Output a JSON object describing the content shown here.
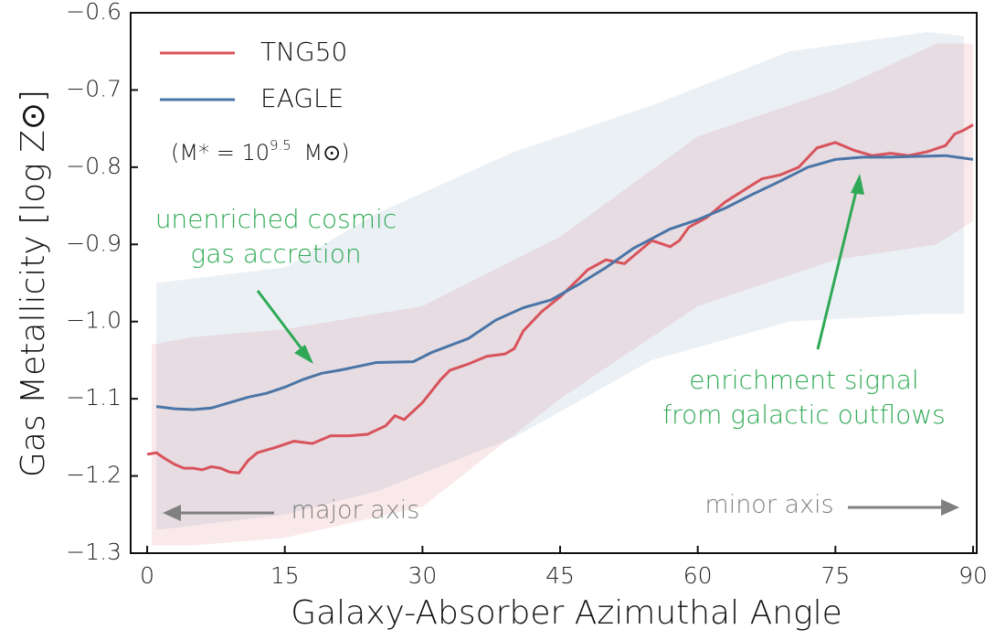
{
  "chart_data": {
    "type": "line",
    "xlabel": "Galaxy-Absorber Azimuthal Angle",
    "ylabel": "Gas Metallicity [log Z⊙]",
    "xlim": [
      -1.8,
      90.4
    ],
    "ylim": [
      -1.3,
      -0.6
    ],
    "xticks": [
      0,
      15,
      30,
      45,
      60,
      75,
      90
    ],
    "yticks": [
      {
        "value": -1.3,
        "label": "−1.3"
      },
      {
        "value": -1.2,
        "label": "−1.2"
      },
      {
        "value": -1.1,
        "label": "−1.1"
      },
      {
        "value": -1.0,
        "label": "−1.0"
      },
      {
        "value": -0.9,
        "label": "−0.9"
      },
      {
        "value": -0.8,
        "label": "−0.8"
      },
      {
        "value": -0.7,
        "label": "−0.7"
      },
      {
        "value": -0.6,
        "label": "−0.6"
      }
    ],
    "legend": "upper left",
    "legend_note": [
      "(M* = 10",
      "9.5",
      " M⊙)"
    ],
    "series": [
      {
        "name": "TNG50",
        "color": "#d9535b",
        "x": [
          0,
          1,
          2,
          3,
          4,
          5,
          6,
          7,
          8,
          9,
          10,
          11,
          12,
          14,
          16,
          18,
          20,
          22,
          24,
          26,
          27,
          28,
          30,
          32,
          33,
          35,
          37,
          39,
          40,
          41,
          43,
          45,
          47,
          48,
          50,
          52,
          54,
          55,
          57,
          58,
          59,
          61,
          63,
          65,
          67,
          69,
          71,
          73,
          75,
          77,
          79,
          81,
          83,
          85,
          87,
          88,
          89,
          90
        ],
        "values": [
          -1.172,
          -1.17,
          -1.178,
          -1.185,
          -1.19,
          -1.19,
          -1.192,
          -1.188,
          -1.19,
          -1.195,
          -1.196,
          -1.18,
          -1.17,
          -1.163,
          -1.155,
          -1.158,
          -1.148,
          -1.148,
          -1.146,
          -1.135,
          -1.122,
          -1.127,
          -1.105,
          -1.075,
          -1.063,
          -1.055,
          -1.045,
          -1.042,
          -1.035,
          -1.012,
          -0.987,
          -0.968,
          -0.945,
          -0.933,
          -0.92,
          -0.925,
          -0.905,
          -0.895,
          -0.903,
          -0.895,
          -0.878,
          -0.865,
          -0.845,
          -0.83,
          -0.815,
          -0.81,
          -0.8,
          -0.775,
          -0.768,
          -0.778,
          -0.785,
          -0.782,
          -0.785,
          -0.78,
          -0.772,
          -0.757,
          -0.752,
          -0.745
        ],
        "band": {
          "x": [
            0.5,
            5,
            15,
            30,
            45,
            60,
            75,
            86,
            90
          ],
          "high": [
            -1.03,
            -1.02,
            -1.01,
            -0.98,
            -0.89,
            -0.76,
            -0.7,
            -0.64,
            -0.64
          ],
          "low": [
            -1.29,
            -1.29,
            -1.28,
            -1.24,
            -1.1,
            -0.98,
            -0.92,
            -0.9,
            -0.87
          ]
        }
      },
      {
        "name": "EAGLE",
        "color": "#4a75a6",
        "x": [
          1,
          3,
          5,
          7,
          9,
          11,
          13,
          15,
          17,
          19,
          21,
          23,
          25,
          29,
          31,
          35,
          38,
          41,
          44,
          47,
          50,
          53,
          57,
          60,
          63,
          66,
          69,
          72,
          75,
          78,
          81,
          84,
          87,
          90
        ],
        "values": [
          -1.11,
          -1.113,
          -1.114,
          -1.112,
          -1.105,
          -1.098,
          -1.093,
          -1.085,
          -1.075,
          -1.067,
          -1.063,
          -1.058,
          -1.053,
          -1.052,
          -1.04,
          -1.022,
          -0.998,
          -0.982,
          -0.972,
          -0.952,
          -0.93,
          -0.905,
          -0.88,
          -0.868,
          -0.853,
          -0.835,
          -0.818,
          -0.8,
          -0.79,
          -0.787,
          -0.787,
          -0.786,
          -0.785,
          -0.79
        ],
        "band": {
          "x": [
            1,
            15,
            25,
            40,
            55,
            70,
            85,
            89
          ],
          "high": [
            -0.95,
            -0.93,
            -0.86,
            -0.78,
            -0.72,
            -0.65,
            -0.625,
            -0.63
          ],
          "low": [
            -1.27,
            -1.25,
            -1.22,
            -1.15,
            -1.05,
            -1.0,
            -0.99,
            -0.99
          ]
        }
      }
    ],
    "annotations": [
      {
        "lines": [
          "unenriched cosmic",
          "gas accretion"
        ],
        "color": "#2fa955"
      },
      {
        "lines": [
          "enrichment signal",
          "from galactic outflows"
        ],
        "color": "#2fa955"
      },
      {
        "lines": [
          "major axis"
        ],
        "color": "#808080"
      },
      {
        "lines": [
          "minor axis"
        ],
        "color": "#808080"
      }
    ]
  }
}
